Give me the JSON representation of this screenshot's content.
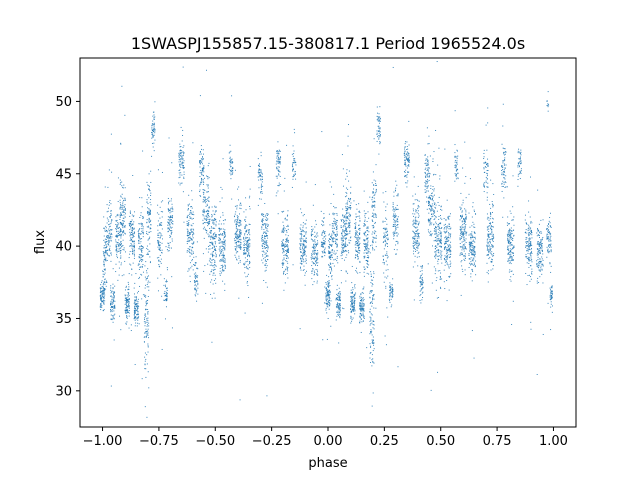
{
  "chart_data": {
    "type": "scatter",
    "title": "1SWASPJ155857.15-380817.1 Period 1965524.0s",
    "xlabel": "phase",
    "ylabel": "flux",
    "xlim": [
      -1.1,
      1.1
    ],
    "ylim": [
      27.5,
      53.0
    ],
    "xticks": [
      -1.0,
      -0.75,
      -0.5,
      -0.25,
      0.0,
      0.25,
      0.5,
      0.75,
      1.0
    ],
    "xtick_labels": [
      "−1.00",
      "−0.75",
      "−0.50",
      "−0.25",
      "0.00",
      "0.25",
      "0.50",
      "0.75",
      "1.00"
    ],
    "yticks": [
      30,
      35,
      40,
      45,
      50
    ],
    "ytick_labels": [
      "30",
      "35",
      "40",
      "45",
      "50"
    ],
    "grid": false,
    "legend": "none",
    "marker_color": "#1f77b4",
    "series": [
      {
        "clusters": [
          {
            "x": -1.0,
            "mean": 36.5,
            "spread": 0.5,
            "width": 0.01,
            "n": 90
          },
          {
            "x": -0.99,
            "mean": 39.5,
            "spread": 1.2,
            "width": 0.008,
            "n": 80
          },
          {
            "x": -0.97,
            "mean": 40.8,
            "spread": 1.0,
            "width": 0.012,
            "n": 90
          },
          {
            "x": -0.955,
            "mean": 36.0,
            "spread": 0.6,
            "width": 0.01,
            "n": 80
          },
          {
            "x": -0.93,
            "mean": 40.5,
            "spread": 1.0,
            "width": 0.012,
            "n": 110
          },
          {
            "x": -0.91,
            "mean": 42.0,
            "spread": 1.3,
            "width": 0.012,
            "n": 110
          },
          {
            "x": -0.89,
            "mean": 36.0,
            "spread": 0.6,
            "width": 0.01,
            "n": 90
          },
          {
            "x": -0.87,
            "mean": 40.5,
            "spread": 1.1,
            "width": 0.012,
            "n": 110
          },
          {
            "x": -0.85,
            "mean": 35.8,
            "spread": 0.5,
            "width": 0.01,
            "n": 90
          },
          {
            "x": -0.83,
            "mean": 40.2,
            "spread": 1.2,
            "width": 0.012,
            "n": 110
          },
          {
            "x": -0.805,
            "mean": 35.0,
            "spread": 2.0,
            "width": 0.01,
            "n": 100
          },
          {
            "x": -0.795,
            "mean": 42.0,
            "spread": 1.5,
            "width": 0.01,
            "n": 90
          },
          {
            "x": -0.775,
            "mean": 48.0,
            "spread": 0.6,
            "width": 0.008,
            "n": 50
          },
          {
            "x": -0.745,
            "mean": 40.5,
            "spread": 1.5,
            "width": 0.012,
            "n": 80
          },
          {
            "x": -0.72,
            "mean": 36.8,
            "spread": 0.5,
            "width": 0.008,
            "n": 45
          },
          {
            "x": -0.7,
            "mean": 41.5,
            "spread": 1.0,
            "width": 0.012,
            "n": 90
          },
          {
            "x": -0.65,
            "mean": 45.8,
            "spread": 0.7,
            "width": 0.012,
            "n": 80
          },
          {
            "x": -0.61,
            "mean": 41.0,
            "spread": 1.2,
            "width": 0.015,
            "n": 130
          },
          {
            "x": -0.585,
            "mean": 37.5,
            "spread": 0.6,
            "width": 0.008,
            "n": 50
          },
          {
            "x": -0.56,
            "mean": 45.0,
            "spread": 0.8,
            "width": 0.01,
            "n": 70
          },
          {
            "x": -0.54,
            "mean": 42.5,
            "spread": 1.3,
            "width": 0.015,
            "n": 120
          },
          {
            "x": -0.51,
            "mean": 40.5,
            "spread": 1.3,
            "width": 0.015,
            "n": 150
          },
          {
            "x": -0.47,
            "mean": 40.0,
            "spread": 1.0,
            "width": 0.015,
            "n": 140
          },
          {
            "x": -0.43,
            "mean": 45.5,
            "spread": 0.6,
            "width": 0.008,
            "n": 40
          },
          {
            "x": -0.4,
            "mean": 41.0,
            "spread": 1.1,
            "width": 0.015,
            "n": 150
          },
          {
            "x": -0.36,
            "mean": 40.0,
            "spread": 1.0,
            "width": 0.015,
            "n": 140
          },
          {
            "x": -0.3,
            "mean": 45.0,
            "spread": 0.6,
            "width": 0.01,
            "n": 50
          },
          {
            "x": -0.28,
            "mean": 40.5,
            "spread": 1.2,
            "width": 0.015,
            "n": 140
          },
          {
            "x": -0.22,
            "mean": 45.5,
            "spread": 0.8,
            "width": 0.01,
            "n": 60
          },
          {
            "x": -0.19,
            "mean": 40.0,
            "spread": 1.0,
            "width": 0.015,
            "n": 140
          },
          {
            "x": -0.15,
            "mean": 45.5,
            "spread": 0.6,
            "width": 0.008,
            "n": 40
          },
          {
            "x": -0.11,
            "mean": 40.0,
            "spread": 1.0,
            "width": 0.015,
            "n": 130
          },
          {
            "x": -0.06,
            "mean": 39.5,
            "spread": 1.0,
            "width": 0.015,
            "n": 120
          },
          {
            "x": -0.02,
            "mean": 40.5,
            "spread": 0.8,
            "width": 0.01,
            "n": 70
          },
          {
            "x": 0.0,
            "mean": 36.5,
            "spread": 0.5,
            "width": 0.01,
            "n": 90
          },
          {
            "x": 0.01,
            "mean": 39.5,
            "spread": 1.2,
            "width": 0.008,
            "n": 80
          },
          {
            "x": 0.03,
            "mean": 40.8,
            "spread": 1.0,
            "width": 0.012,
            "n": 90
          },
          {
            "x": 0.045,
            "mean": 36.0,
            "spread": 0.6,
            "width": 0.01,
            "n": 80
          },
          {
            "x": 0.07,
            "mean": 40.5,
            "spread": 1.0,
            "width": 0.012,
            "n": 110
          },
          {
            "x": 0.09,
            "mean": 42.0,
            "spread": 1.3,
            "width": 0.012,
            "n": 110
          },
          {
            "x": 0.11,
            "mean": 36.0,
            "spread": 0.6,
            "width": 0.01,
            "n": 90
          },
          {
            "x": 0.13,
            "mean": 40.5,
            "spread": 1.1,
            "width": 0.012,
            "n": 110
          },
          {
            "x": 0.15,
            "mean": 35.8,
            "spread": 0.5,
            "width": 0.01,
            "n": 90
          },
          {
            "x": 0.17,
            "mean": 40.2,
            "spread": 1.2,
            "width": 0.012,
            "n": 110
          },
          {
            "x": 0.195,
            "mean": 35.0,
            "spread": 2.0,
            "width": 0.01,
            "n": 100
          },
          {
            "x": 0.205,
            "mean": 42.0,
            "spread": 1.5,
            "width": 0.01,
            "n": 90
          },
          {
            "x": 0.225,
            "mean": 48.0,
            "spread": 0.6,
            "width": 0.008,
            "n": 50
          },
          {
            "x": 0.255,
            "mean": 40.5,
            "spread": 1.5,
            "width": 0.012,
            "n": 80
          },
          {
            "x": 0.28,
            "mean": 36.8,
            "spread": 0.5,
            "width": 0.008,
            "n": 45
          },
          {
            "x": 0.3,
            "mean": 41.5,
            "spread": 1.0,
            "width": 0.012,
            "n": 90
          },
          {
            "x": 0.35,
            "mean": 45.8,
            "spread": 0.7,
            "width": 0.012,
            "n": 80
          },
          {
            "x": 0.39,
            "mean": 41.0,
            "spread": 1.2,
            "width": 0.015,
            "n": 130
          },
          {
            "x": 0.415,
            "mean": 37.5,
            "spread": 0.6,
            "width": 0.008,
            "n": 50
          },
          {
            "x": 0.44,
            "mean": 45.0,
            "spread": 0.8,
            "width": 0.01,
            "n": 70
          },
          {
            "x": 0.46,
            "mean": 42.5,
            "spread": 1.3,
            "width": 0.015,
            "n": 120
          },
          {
            "x": 0.49,
            "mean": 40.5,
            "spread": 1.3,
            "width": 0.015,
            "n": 150
          },
          {
            "x": 0.53,
            "mean": 40.0,
            "spread": 1.0,
            "width": 0.015,
            "n": 140
          },
          {
            "x": 0.57,
            "mean": 45.5,
            "spread": 0.6,
            "width": 0.008,
            "n": 40
          },
          {
            "x": 0.6,
            "mean": 41.0,
            "spread": 1.1,
            "width": 0.015,
            "n": 150
          },
          {
            "x": 0.64,
            "mean": 40.0,
            "spread": 1.0,
            "width": 0.015,
            "n": 140
          },
          {
            "x": 0.7,
            "mean": 45.0,
            "spread": 0.6,
            "width": 0.01,
            "n": 50
          },
          {
            "x": 0.72,
            "mean": 40.5,
            "spread": 1.2,
            "width": 0.015,
            "n": 140
          },
          {
            "x": 0.78,
            "mean": 45.5,
            "spread": 0.8,
            "width": 0.01,
            "n": 60
          },
          {
            "x": 0.81,
            "mean": 40.0,
            "spread": 1.0,
            "width": 0.015,
            "n": 140
          },
          {
            "x": 0.85,
            "mean": 45.5,
            "spread": 0.6,
            "width": 0.008,
            "n": 40
          },
          {
            "x": 0.89,
            "mean": 40.0,
            "spread": 1.0,
            "width": 0.015,
            "n": 130
          },
          {
            "x": 0.94,
            "mean": 39.5,
            "spread": 1.0,
            "width": 0.015,
            "n": 120
          },
          {
            "x": 0.98,
            "mean": 40.5,
            "spread": 0.8,
            "width": 0.01,
            "n": 70
          },
          {
            "x": 0.99,
            "mean": 36.5,
            "spread": 0.5,
            "width": 0.006,
            "n": 40
          },
          {
            "x": 0.975,
            "mean": 49.8,
            "spread": 0.3,
            "width": 0.004,
            "n": 10
          }
        ]
      }
    ]
  }
}
